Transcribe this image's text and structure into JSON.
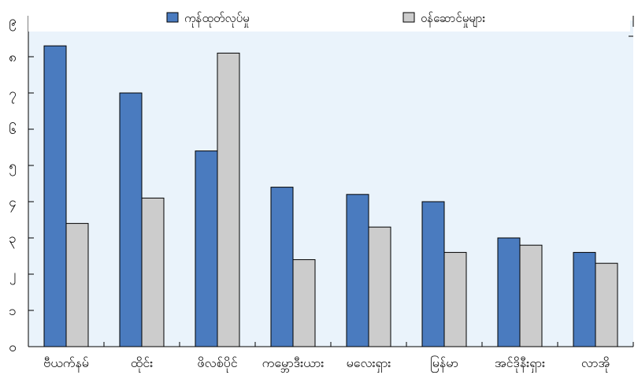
{
  "chart_data": {
    "type": "bar",
    "categories": [
      "ဗီယက်နမ်",
      "ထိုင်း",
      "ဖိလစ်ပိုင်",
      "ကမ္ဘောဒီးယား",
      "မလေးရှား",
      "မြန်မာ",
      "အင်ဒိုနီးရှား",
      "လာအို"
    ],
    "series": [
      {
        "name": "ကုန်ထုတ်လုပ်မှု",
        "color": "#4a7bbf",
        "values": [
          8.3,
          7.0,
          5.4,
          4.4,
          4.2,
          4.0,
          3.0,
          2.6
        ]
      },
      {
        "name": "ဝန်ဆောင်မှုများ",
        "color": "#cccccc",
        "values": [
          3.4,
          4.1,
          8.1,
          2.4,
          3.3,
          2.6,
          2.8,
          2.3
        ]
      }
    ],
    "yticks": [
      "၀",
      "၁",
      "၂",
      "၃",
      "၄",
      "၅",
      "၆",
      "၇",
      "၈",
      "၉"
    ],
    "ylim": [
      0,
      9
    ],
    "legend_position": "top",
    "plot_background": "#eaf3fb",
    "grid": false
  }
}
